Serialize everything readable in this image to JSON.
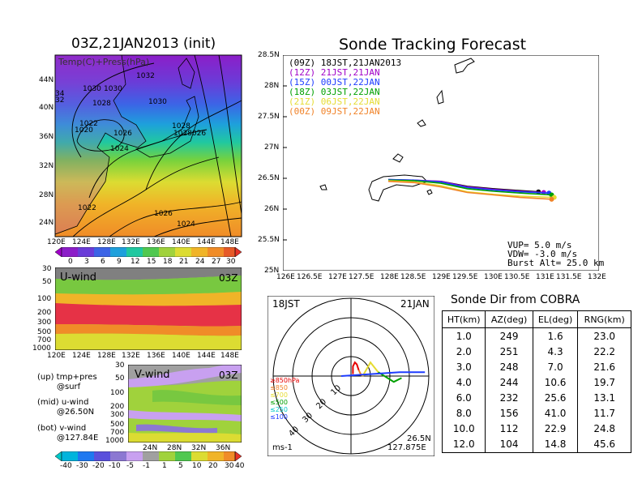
{
  "init_title": "03Z,21JAN2013 (init)",
  "map_label": "Temp(C)+Press(hPa)",
  "map_lat_labels": [
    "44N",
    "40N",
    "36N",
    "32N",
    "28N",
    "24N"
  ],
  "map_lon_labels": [
    "120E",
    "124E",
    "128E",
    "132E",
    "136E",
    "140E",
    "144E",
    "148E"
  ],
  "isobar_labels": [
    "1032",
    "1030",
    "1030",
    "1028",
    "1030",
    "1028",
    "1028",
    "1026",
    "1026",
    "1024",
    "1022",
    "1020",
    "1022",
    "1026",
    "1024",
    "34",
    "32"
  ],
  "temp_scale": [
    "0",
    "3",
    "6",
    "9",
    "12",
    "15",
    "18",
    "21",
    "24",
    "27",
    "30"
  ],
  "uwind_label": "U-wind",
  "uwind_time": "03Z",
  "uwind_pressure": [
    "30",
    "50",
    "100",
    "200",
    "300",
    "500",
    "700",
    "1000"
  ],
  "uwind_lon_labels": [
    "120E",
    "124E",
    "128E",
    "132E",
    "136E",
    "140E",
    "144E",
    "148E"
  ],
  "vwind_label": "V-wind",
  "vwind_time": "03Z",
  "vwind_pressure": [
    "30",
    "50",
    "100",
    "200",
    "300",
    "500",
    "700",
    "1000"
  ],
  "vwind_lat_labels": [
    "24N",
    "28N",
    "32N",
    "36N"
  ],
  "wind_scale": [
    "-40",
    "-30",
    "-20",
    "-10",
    "-5",
    "-1",
    "1",
    "5",
    "10",
    "20",
    "30",
    "40"
  ],
  "notes": {
    "up": "(up) tmp+pres",
    "up2": "@surf",
    "mid": "(mid) u-wind",
    "mid2": "@26.50N",
    "bot": "(bot) v-wind",
    "bot2": "@127.84E"
  },
  "track_title": "Sonde Tracking Forecast",
  "track_legend": [
    {
      "utc": "(09Z)",
      "jst": "18JST,21JAN2013",
      "color": "#000000"
    },
    {
      "utc": "(12Z)",
      "jst": "21JST,21JAN",
      "color": "#a000c8"
    },
    {
      "utc": "(15Z)",
      "jst": "00JST,22JAN",
      "color": "#1e3cff"
    },
    {
      "utc": "(18Z)",
      "jst": "03JST,22JAN",
      "color": "#00a000"
    },
    {
      "utc": "(21Z)",
      "jst": "06JST,22JAN",
      "color": "#e6dc32"
    },
    {
      "utc": "(00Z)",
      "jst": "09JST,22JAN",
      "color": "#f08228"
    }
  ],
  "track_params": {
    "vup": "VUP= 5.0 m/s",
    "vdw": "VDW= -3.0 m/s",
    "burst": "Burst Alt= 25.0 km"
  },
  "track_lat_labels": [
    "28.5N",
    "28N",
    "27.5N",
    "27N",
    "26.5N",
    "26N",
    "25.5N",
    "25N"
  ],
  "track_lon_labels": [
    "126E",
    "126.5E",
    "127E",
    "127.5E",
    "128E",
    "128.5E",
    "129E",
    "129.5E",
    "130E",
    "130.5E",
    "131E",
    "131.5E",
    "132E"
  ],
  "hodo": {
    "left_label": "18JST",
    "right_label": "21JAN",
    "units": "ms-1",
    "lat": "26.5N",
    "lon": "127.875E",
    "ring_labels": [
      "10",
      "20",
      "30",
      "40"
    ],
    "levels": [
      {
        "label": "≥850hPa",
        "color": "#e60000"
      },
      {
        "label": "≤850",
        "color": "#f08228"
      },
      {
        "label": "≤700",
        "color": "#e6dc32"
      },
      {
        "label": "≤500",
        "color": "#00a000"
      },
      {
        "label": "≤250",
        "color": "#00c8c8"
      },
      {
        "label": "≤100",
        "color": "#1e3cff"
      }
    ]
  },
  "table_title": "Sonde Dir from COBRA",
  "table": {
    "headers": [
      "HT(km)",
      "AZ(deg)",
      "EL(deg)",
      "RNG(km)"
    ],
    "rows": [
      [
        "1.0",
        "249",
        "1.6",
        "23.0"
      ],
      [
        "2.0",
        "251",
        "4.3",
        "22.2"
      ],
      [
        "3.0",
        "248",
        "7.0",
        "21.6"
      ],
      [
        "4.0",
        "244",
        "10.6",
        "19.7"
      ],
      [
        "6.0",
        "232",
        "25.6",
        "13.1"
      ],
      [
        "8.0",
        "156",
        "41.0",
        "11.7"
      ],
      [
        "10.0",
        "112",
        "22.9",
        "24.8"
      ],
      [
        "12.0",
        "104",
        "14.8",
        "45.6"
      ]
    ]
  },
  "chart_data": [
    {
      "type": "line",
      "title": "Sonde Tracking Forecast",
      "xlim": [
        126,
        132
      ],
      "ylim": [
        25,
        28.5
      ],
      "series": [
        {
          "name": "(09Z) 18JST,21JAN2013",
          "x": [
            128.0,
            128.5,
            129.0,
            129.5,
            130.0,
            130.5,
            130.85
          ],
          "y": [
            26.47,
            26.46,
            26.45,
            26.37,
            26.33,
            26.3,
            26.28
          ]
        },
        {
          "name": "(12Z) 21JST,21JAN",
          "x": [
            128.0,
            128.5,
            129.0,
            129.5,
            130.0,
            130.5,
            130.95
          ],
          "y": [
            26.48,
            26.47,
            26.45,
            26.36,
            26.32,
            26.29,
            26.27
          ]
        },
        {
          "name": "(15Z) 00JST,22JAN",
          "x": [
            128.0,
            128.5,
            129.0,
            129.5,
            130.0,
            130.5,
            131.05
          ],
          "y": [
            26.48,
            26.47,
            26.44,
            26.35,
            26.31,
            26.28,
            26.26
          ]
        },
        {
          "name": "(18Z) 03JST,22JAN",
          "x": [
            128.0,
            128.5,
            129.0,
            129.5,
            130.0,
            130.5,
            131.1
          ],
          "y": [
            26.47,
            26.46,
            26.42,
            26.33,
            26.29,
            26.26,
            26.23
          ]
        },
        {
          "name": "(21Z) 06JST,22JAN",
          "x": [
            128.0,
            128.5,
            129.0,
            129.5,
            130.0,
            130.5,
            131.15
          ],
          "y": [
            26.46,
            26.44,
            26.38,
            26.28,
            26.24,
            26.21,
            26.19
          ]
        },
        {
          "name": "(00Z) 09JST,22JAN",
          "x": [
            128.0,
            128.5,
            129.0,
            129.5,
            130.0,
            130.5,
            131.1
          ],
          "y": [
            26.45,
            26.43,
            26.36,
            26.27,
            26.23,
            26.19,
            26.16
          ]
        }
      ]
    },
    {
      "type": "line",
      "title": "Hodograph 18JST 21JAN",
      "series": [
        {
          "name": "≥850hPa",
          "u": [
            1,
            1,
            2,
            3,
            4
          ],
          "v": [
            1,
            5,
            7,
            6,
            3
          ]
        },
        {
          "name": "≤850",
          "u": [
            4,
            5,
            6
          ],
          "v": [
            3,
            1,
            0
          ]
        },
        {
          "name": "≤700",
          "u": [
            6,
            10,
            14
          ],
          "v": [
            0,
            7,
            2
          ]
        },
        {
          "name": "≤500",
          "u": [
            14,
            22,
            26
          ],
          "v": [
            2,
            -3,
            -1
          ]
        },
        {
          "name": "≤100",
          "u": [
            -5,
            10,
            25,
            38
          ],
          "v": [
            0,
            1,
            2,
            2
          ]
        }
      ]
    }
  ]
}
